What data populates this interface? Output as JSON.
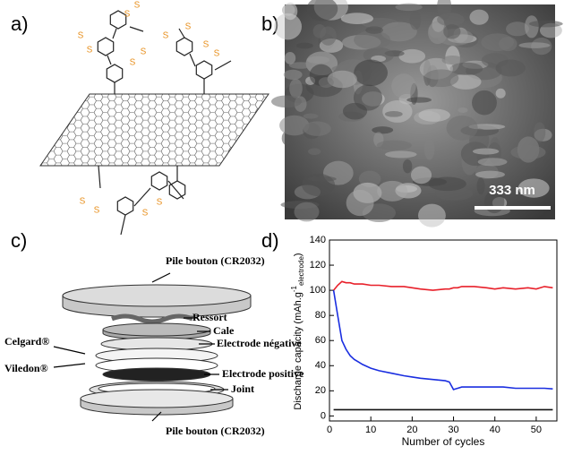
{
  "panels": {
    "a": "a)",
    "b": "b)",
    "c": "c)",
    "d": "d)"
  },
  "panel_a": {
    "sulfur_labels": [
      "S",
      "S",
      "S",
      "S",
      "S",
      "S",
      "S",
      "S",
      "S",
      "S",
      "S",
      "S",
      "S",
      "S"
    ]
  },
  "panel_b": {
    "scale_bar": "333 nm"
  },
  "panel_c": {
    "labels": [
      "Pile bouton (CR2032)",
      "Ressort",
      "Cale",
      "Electrode négative",
      "Celgard®",
      "Viledon®",
      "Electrode positive",
      "Joint",
      "Pile bouton (CR2032)"
    ]
  },
  "chart_data": {
    "type": "line",
    "xlabel": "Number of cycles",
    "ylabel": {
      "main": "Discharge capacity (mAh.g",
      "sup": "-1",
      "sub": "electrode",
      "end": ")"
    },
    "x": [
      1,
      2,
      3,
      4,
      5,
      6,
      7,
      8,
      10,
      12,
      15,
      18,
      20,
      22,
      25,
      28,
      29,
      30,
      31,
      32,
      35,
      38,
      40,
      42,
      45,
      48,
      50,
      52,
      54
    ],
    "series": [
      {
        "color": "#e8202a",
        "values": [
          100,
          104,
          107,
          106,
          106,
          105,
          105,
          105,
          104,
          104,
          103,
          103,
          102,
          101,
          100,
          101,
          101,
          102,
          102,
          103,
          103,
          102,
          101,
          102,
          101,
          102,
          101,
          103,
          102
        ]
      },
      {
        "color": "#1a2ee0",
        "values": [
          100,
          80,
          60,
          53,
          48,
          45,
          43,
          41,
          38,
          36,
          34,
          32,
          31,
          30,
          29,
          28,
          27,
          21,
          22,
          23,
          23,
          23,
          23,
          23,
          22,
          22,
          22,
          22,
          21.5
        ]
      },
      {
        "color": "#111111",
        "values": [
          5,
          5,
          5,
          5,
          5,
          5,
          5,
          5,
          5,
          5,
          5,
          5,
          5,
          5,
          5,
          5,
          5,
          5,
          5,
          5,
          5,
          5,
          5,
          5,
          5,
          5,
          5,
          5,
          5
        ]
      }
    ],
    "xlim": [
      0,
      55
    ],
    "ylim": [
      -4,
      140
    ],
    "xticks": [
      0,
      10,
      20,
      30,
      40,
      50
    ],
    "yticks": [
      0,
      20,
      40,
      60,
      80,
      100,
      120,
      140
    ]
  }
}
